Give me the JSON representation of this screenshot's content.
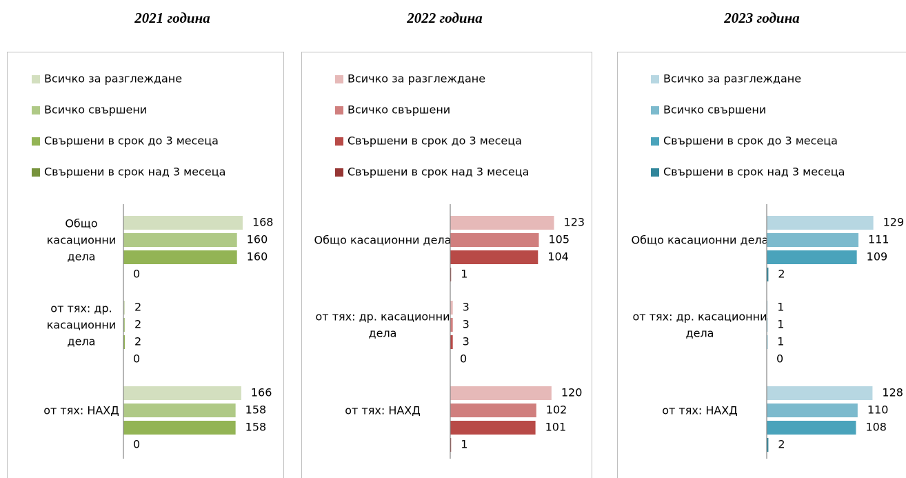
{
  "chart_data": [
    {
      "type": "bar",
      "orientation": "horizontal",
      "title": "2021 година",
      "categories": [
        "Общо касационни дела",
        "от тях: др. касационни дела",
        "от тях: НАХД"
      ],
      "series": [
        {
          "name": "Всичко за разглеждане",
          "color": "#d3dfbf",
          "values": [
            168,
            2,
            166
          ]
        },
        {
          "name": "Всичко свършени",
          "color": "#afc986",
          "values": [
            160,
            2,
            158
          ]
        },
        {
          "name": "Свършени в срок до 3 месеца",
          "color": "#93b455",
          "values": [
            160,
            2,
            158
          ]
        },
        {
          "name": "Свършени в срок над 3 месеца",
          "color": "#77933c",
          "values": [
            0,
            0,
            0
          ]
        }
      ],
      "xlim": [
        0,
        170
      ]
    },
    {
      "type": "bar",
      "orientation": "horizontal",
      "title": "2022 година",
      "categories": [
        "Общо касационни дела",
        "от тях: др. касационни дела",
        "от тях: НАХД"
      ],
      "series": [
        {
          "name": "Всичко за разглеждане",
          "color": "#e6b9b8",
          "values": [
            123,
            3,
            120
          ]
        },
        {
          "name": "Всичко свършени",
          "color": "#d07f7e",
          "values": [
            105,
            3,
            102
          ]
        },
        {
          "name": "Свършени в срок до 3 месеца",
          "color": "#b84a47",
          "values": [
            104,
            3,
            101
          ]
        },
        {
          "name": "Свършени в срок над 3 месеца",
          "color": "#963634",
          "values": [
            1,
            0,
            1
          ]
        }
      ],
      "xlim": [
        0,
        143
      ]
    },
    {
      "type": "bar",
      "orientation": "horizontal",
      "title": "2023 година",
      "categories": [
        "Общо касационни дела",
        "от тях: др. касационни дела",
        "от тях: НАХД"
      ],
      "series": [
        {
          "name": "Всичко за разглеждане",
          "color": "#b7d7e2",
          "values": [
            129,
            1,
            128
          ]
        },
        {
          "name": "Всичко свършени",
          "color": "#7cbacd",
          "values": [
            111,
            1,
            110
          ]
        },
        {
          "name": "Свършени в срок до 3 месеца",
          "color": "#4aa3bb",
          "values": [
            109,
            1,
            108
          ]
        },
        {
          "name": "Свършени в срок над 3 месеца",
          "color": "#31869b",
          "values": [
            2,
            0,
            2
          ]
        }
      ],
      "xlim": [
        0,
        146
      ]
    }
  ]
}
